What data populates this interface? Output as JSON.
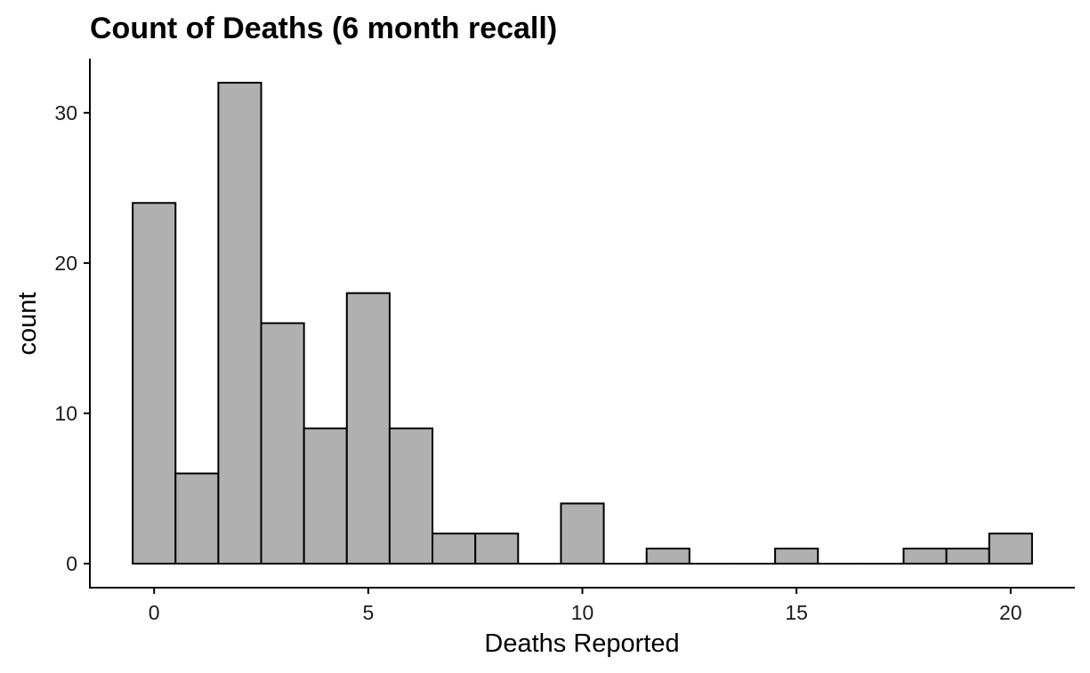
{
  "chart_data": {
    "type": "bar",
    "title": "Count of Deaths (6 month recall)",
    "xlabel": "Deaths Reported",
    "ylabel": "count",
    "bin_width": 1,
    "bins": [
      0,
      1,
      2,
      3,
      4,
      5,
      6,
      7,
      8,
      9,
      10,
      11,
      12,
      13,
      14,
      15,
      16,
      17,
      18,
      19,
      20
    ],
    "counts": [
      24,
      6,
      32,
      16,
      9,
      18,
      9,
      2,
      2,
      0,
      4,
      0,
      1,
      0,
      0,
      1,
      0,
      0,
      1,
      1,
      2
    ],
    "xlim": [
      -1.5,
      21.5
    ],
    "ylim": [
      -1.6,
      33.6
    ],
    "x_ticks": [
      0,
      5,
      10,
      15,
      20
    ],
    "y_ticks": [
      0,
      10,
      20,
      30
    ],
    "grid": false,
    "bar_fill": "#b0b0b0",
    "bar_stroke": "#000000"
  }
}
